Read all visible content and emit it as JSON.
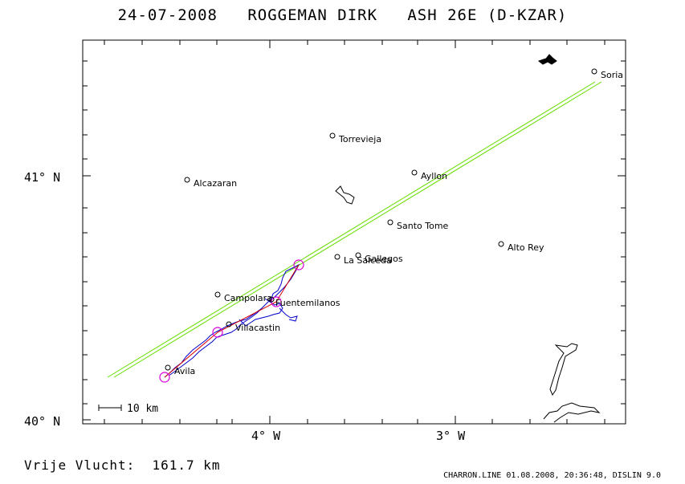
{
  "header": {
    "title": "24-07-2008   ROGGEMAN DIRK   ASH 26E (D-KZAR)"
  },
  "axes": {
    "lat_labels": [
      "41° N",
      "40° N"
    ],
    "lon_labels": [
      "4° W",
      "3° W"
    ]
  },
  "scale_bar": {
    "label": "10 km"
  },
  "places": [
    {
      "name": "Soria"
    },
    {
      "name": "Torrevieja"
    },
    {
      "name": "Ayllon"
    },
    {
      "name": "Alcazaran"
    },
    {
      "name": "Santo Tome"
    },
    {
      "name": "Alto Rey"
    },
    {
      "name": "La Salceda"
    },
    {
      "name": "Gallegos"
    },
    {
      "name": "Campolara"
    },
    {
      "name": "Fuentemilanos"
    },
    {
      "name": "Villacastin"
    },
    {
      "name": "Avila"
    }
  ],
  "summary": {
    "distance_text": "Vrije Vlucht:  161.7 km"
  },
  "footer": {
    "text": "CHARRON.LINE 01.08.2008, 20:36:48, DISLIN 9.0"
  },
  "colors": {
    "task_line": "#66dd00",
    "track": "#0000cc",
    "route": "#dd0000",
    "turnpoint": "#dd00dd"
  }
}
